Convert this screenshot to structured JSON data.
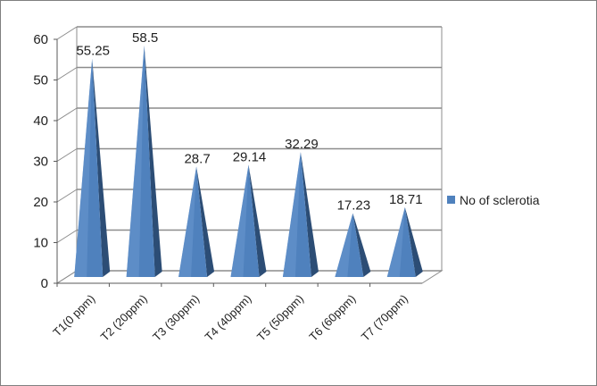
{
  "chart_data": {
    "type": "bar",
    "style": "3d-pyramid",
    "categories": [
      "T1(0 ppm)",
      "T2 (20ppm)",
      "T3 (30ppm)",
      "T4 (40ppm)",
      "T5 (50ppm)",
      "T6 (60ppm)",
      "T7 (70ppm)"
    ],
    "series": [
      {
        "name": "No of sclerotia",
        "values": [
          55.25,
          58.5,
          28.7,
          29.14,
          32.29,
          17.23,
          18.71
        ],
        "labels": [
          "55.25",
          "58.5",
          "28.7",
          "29.14",
          "32.29",
          "17.23",
          "18.71"
        ]
      }
    ],
    "y_ticks": [
      "0",
      "10",
      "20",
      "30",
      "40",
      "50",
      "60"
    ],
    "ylim": [
      0,
      60
    ],
    "grid": true,
    "legend_position": "right",
    "colors": {
      "bar_front": "#4f81bd",
      "bar_dark": "#2c4d75",
      "legend_swatch": "#4f81bd",
      "grid": "#8c8c8c",
      "floor": "#bfbfbf"
    }
  }
}
